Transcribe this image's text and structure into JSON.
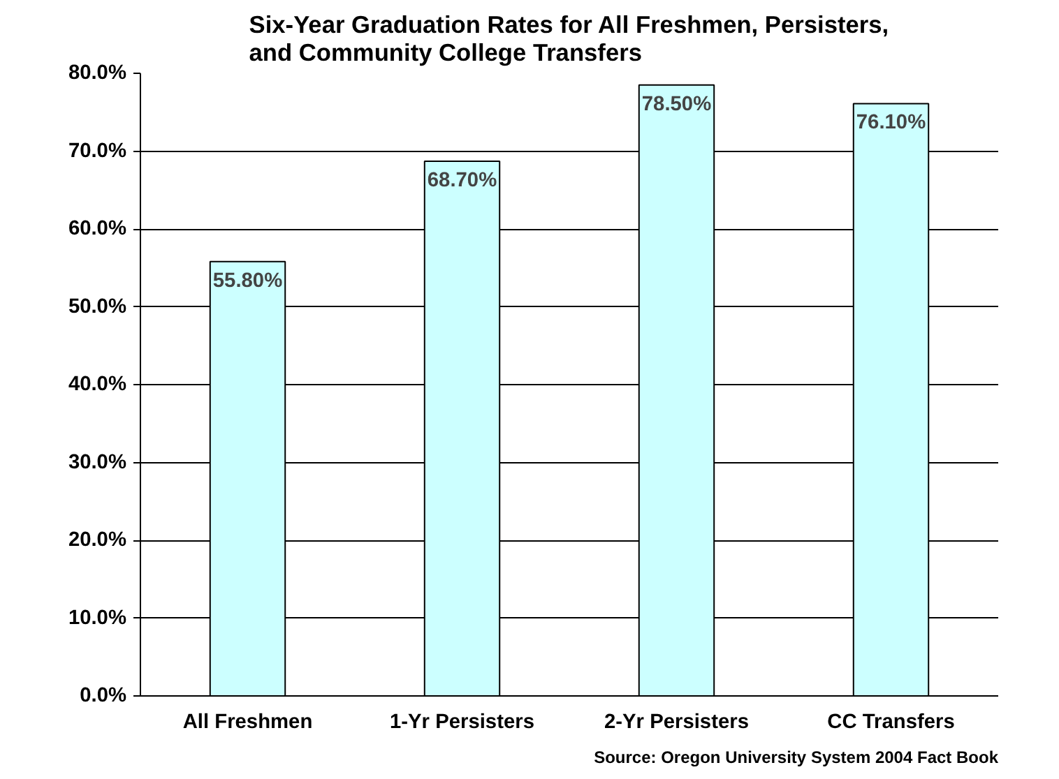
{
  "chart_data": {
    "type": "bar",
    "title": "Six-Year Graduation Rates for All Freshmen, Persisters,\nand Community College Transfers",
    "categories": [
      "All Freshmen",
      "1-Yr Persisters",
      "2-Yr Persisters",
      "CC Transfers"
    ],
    "values": [
      55.8,
      68.7,
      78.5,
      76.1
    ],
    "value_labels": [
      "55.80%",
      "68.70%",
      "78.50%",
      "76.10%"
    ],
    "color": "#ccffff",
    "ylim": [
      0,
      80
    ],
    "yticks": [
      {
        "value": 0,
        "label": "0.0%"
      },
      {
        "value": 10,
        "label": "10.0%"
      },
      {
        "value": 20,
        "label": "20.0%"
      },
      {
        "value": 30,
        "label": "30.0%"
      },
      {
        "value": 40,
        "label": "40.0%"
      },
      {
        "value": 50,
        "label": "50.0%"
      },
      {
        "value": 60,
        "label": "60.0%"
      },
      {
        "value": 70,
        "label": "70.0%"
      },
      {
        "value": 80,
        "label": "80.0%"
      }
    ],
    "grid": "y",
    "annotations": [
      "Source: Oregon University System 2004 Fact Book"
    ]
  }
}
